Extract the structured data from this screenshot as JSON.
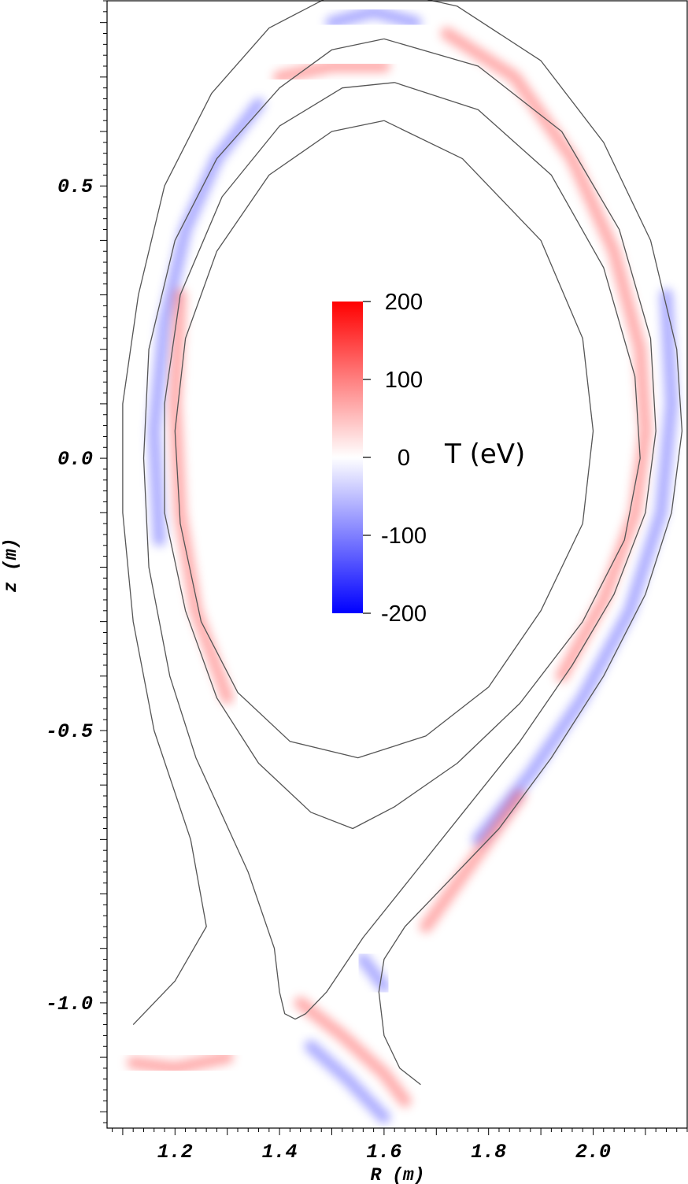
{
  "chart_data": {
    "type": "heatmap",
    "title": "",
    "xlabel": "R (m)",
    "ylabel": "z (m)",
    "xlim": [
      1.07,
      2.18
    ],
    "ylim": [
      -1.23,
      0.84
    ],
    "x_ticks": [
      {
        "value": 1.2,
        "label": "1.2"
      },
      {
        "value": 1.4,
        "label": "1.4"
      },
      {
        "value": 1.6,
        "label": "1.6"
      },
      {
        "value": 1.8,
        "label": "1.8"
      },
      {
        "value": 2.0,
        "label": "2.0"
      }
    ],
    "y_ticks": [
      {
        "value": 0.5,
        "label": "0.5"
      },
      {
        "value": 0.0,
        "label": "0.0"
      },
      {
        "value": -0.5,
        "label": "-0.5"
      },
      {
        "value": -1.0,
        "label": "-1.0"
      }
    ],
    "colorbar": {
      "title": "T (eV)",
      "range": [
        -200,
        200
      ],
      "ticks": [
        {
          "value": 200,
          "label": "200"
        },
        {
          "value": 100,
          "label": "100"
        },
        {
          "value": 0,
          "label": "0"
        },
        {
          "value": -100,
          "label": "-100"
        },
        {
          "value": -200,
          "label": "-200"
        }
      ],
      "colors": {
        "min": "#0000ff",
        "mid": "#ffffff",
        "max": "#ff0000"
      }
    },
    "flux_surfaces": [
      {
        "points": [
          [
            1.6,
            0.62
          ],
          [
            1.75,
            0.55
          ],
          [
            1.9,
            0.4
          ],
          [
            1.98,
            0.22
          ],
          [
            2.0,
            0.05
          ],
          [
            1.98,
            -0.12
          ],
          [
            1.9,
            -0.28
          ],
          [
            1.8,
            -0.42
          ],
          [
            1.68,
            -0.51
          ],
          [
            1.55,
            -0.55
          ],
          [
            1.42,
            -0.52
          ],
          [
            1.32,
            -0.43
          ],
          [
            1.25,
            -0.3
          ],
          [
            1.21,
            -0.12
          ],
          [
            1.2,
            0.05
          ],
          [
            1.22,
            0.22
          ],
          [
            1.28,
            0.38
          ],
          [
            1.38,
            0.52
          ],
          [
            1.5,
            0.6
          ],
          [
            1.6,
            0.62
          ]
        ]
      },
      {
        "points": [
          [
            1.62,
            0.69
          ],
          [
            1.78,
            0.64
          ],
          [
            1.92,
            0.52
          ],
          [
            2.02,
            0.35
          ],
          [
            2.08,
            0.15
          ],
          [
            2.09,
            0.0
          ],
          [
            2.06,
            -0.15
          ],
          [
            1.98,
            -0.3
          ],
          [
            1.86,
            -0.45
          ],
          [
            1.74,
            -0.56
          ],
          [
            1.62,
            -0.64
          ],
          [
            1.54,
            -0.68
          ],
          [
            1.46,
            -0.65
          ],
          [
            1.36,
            -0.56
          ],
          [
            1.28,
            -0.44
          ],
          [
            1.22,
            -0.28
          ],
          [
            1.18,
            -0.1
          ],
          [
            1.18,
            0.1
          ],
          [
            1.21,
            0.3
          ],
          [
            1.29,
            0.48
          ],
          [
            1.4,
            0.61
          ],
          [
            1.52,
            0.68
          ],
          [
            1.62,
            0.69
          ]
        ]
      },
      {
        "points": [
          [
            1.6,
            0.77
          ],
          [
            1.78,
            0.72
          ],
          [
            1.94,
            0.6
          ],
          [
            2.05,
            0.42
          ],
          [
            2.11,
            0.22
          ],
          [
            2.12,
            0.05
          ],
          [
            2.1,
            -0.1
          ],
          [
            2.04,
            -0.25
          ],
          [
            1.96,
            -0.38
          ],
          [
            1.86,
            -0.52
          ],
          [
            1.76,
            -0.64
          ],
          [
            1.66,
            -0.76
          ],
          [
            1.56,
            -0.88
          ],
          [
            1.49,
            -0.98
          ],
          [
            1.45,
            -1.02
          ],
          [
            1.43,
            -1.03
          ],
          [
            1.41,
            -1.02
          ],
          [
            1.4,
            -0.98
          ],
          [
            1.39,
            -0.9
          ],
          [
            1.34,
            -0.76
          ],
          [
            1.24,
            -0.55
          ],
          [
            1.19,
            -0.4
          ],
          [
            1.15,
            -0.2
          ],
          [
            1.14,
            0.0
          ],
          [
            1.15,
            0.2
          ],
          [
            1.2,
            0.4
          ],
          [
            1.28,
            0.55
          ],
          [
            1.4,
            0.68
          ],
          [
            1.5,
            0.75
          ],
          [
            1.6,
            0.77
          ]
        ]
      },
      {
        "points": [
          [
            1.12,
            -1.04
          ],
          [
            1.2,
            -0.96
          ],
          [
            1.26,
            -0.86
          ],
          [
            1.23,
            -0.7
          ],
          [
            1.16,
            -0.5
          ],
          [
            1.12,
            -0.3
          ],
          [
            1.1,
            -0.1
          ],
          [
            1.1,
            0.1
          ],
          [
            1.13,
            0.3
          ],
          [
            1.18,
            0.5
          ],
          [
            1.27,
            0.67
          ],
          [
            1.38,
            0.79
          ],
          [
            1.5,
            0.85
          ],
          [
            1.6,
            0.86
          ],
          [
            1.74,
            0.83
          ],
          [
            1.9,
            0.73
          ],
          [
            2.02,
            0.58
          ],
          [
            2.11,
            0.4
          ],
          [
            2.16,
            0.2
          ],
          [
            2.17,
            0.05
          ],
          [
            2.15,
            -0.1
          ],
          [
            2.1,
            -0.25
          ],
          [
            2.02,
            -0.4
          ],
          [
            1.92,
            -0.55
          ],
          [
            1.82,
            -0.68
          ],
          [
            1.72,
            -0.78
          ],
          [
            1.64,
            -0.86
          ],
          [
            1.6,
            -0.92
          ],
          [
            1.59,
            -0.98
          ],
          [
            1.6,
            -1.06
          ],
          [
            1.63,
            -1.12
          ],
          [
            1.67,
            -1.15
          ]
        ]
      }
    ],
    "perturbation_bands": [
      {
        "sign": "positive",
        "points": [
          [
            1.72,
            0.78
          ],
          [
            1.85,
            0.7
          ],
          [
            1.96,
            0.55
          ],
          [
            2.04,
            0.38
          ],
          [
            2.09,
            0.2
          ],
          [
            2.1,
            0.05
          ],
          [
            2.08,
            -0.1
          ],
          [
            2.02,
            -0.26
          ],
          [
            1.94,
            -0.4
          ]
        ]
      },
      {
        "sign": "negative",
        "points": [
          [
            2.14,
            0.3
          ],
          [
            2.15,
            0.1
          ],
          [
            2.13,
            -0.1
          ],
          [
            2.07,
            -0.28
          ],
          [
            1.98,
            -0.44
          ],
          [
            1.88,
            -0.58
          ],
          [
            1.78,
            -0.7
          ]
        ]
      },
      {
        "sign": "positive",
        "points": [
          [
            1.86,
            -0.62
          ],
          [
            1.8,
            -0.7
          ],
          [
            1.74,
            -0.78
          ],
          [
            1.68,
            -0.86
          ]
        ]
      },
      {
        "sign": "negative",
        "points": [
          [
            1.36,
            0.65
          ],
          [
            1.28,
            0.55
          ],
          [
            1.22,
            0.42
          ],
          [
            1.18,
            0.25
          ],
          [
            1.16,
            0.05
          ],
          [
            1.17,
            -0.15
          ]
        ]
      },
      {
        "sign": "positive",
        "points": [
          [
            1.21,
            0.3
          ],
          [
            1.2,
            0.1
          ],
          [
            1.21,
            -0.1
          ],
          [
            1.24,
            -0.28
          ],
          [
            1.3,
            -0.44
          ]
        ]
      },
      {
        "sign": "negative",
        "points": [
          [
            1.5,
            0.8
          ],
          [
            1.58,
            0.82
          ],
          [
            1.66,
            0.8
          ]
        ]
      },
      {
        "sign": "positive",
        "points": [
          [
            1.4,
            0.7
          ],
          [
            1.5,
            0.72
          ],
          [
            1.6,
            0.72
          ]
        ]
      },
      {
        "sign": "positive",
        "points": [
          [
            1.44,
            -1.0
          ],
          [
            1.52,
            -1.06
          ],
          [
            1.6,
            -1.13
          ],
          [
            1.64,
            -1.18
          ]
        ]
      },
      {
        "sign": "negative",
        "points": [
          [
            1.46,
            -1.08
          ],
          [
            1.53,
            -1.14
          ],
          [
            1.6,
            -1.21
          ]
        ]
      },
      {
        "sign": "negative",
        "points": [
          [
            1.56,
            -0.92
          ],
          [
            1.6,
            -0.97
          ]
        ]
      },
      {
        "sign": "positive",
        "points": [
          [
            1.12,
            -1.11
          ],
          [
            1.2,
            -1.12
          ],
          [
            1.3,
            -1.1
          ]
        ]
      }
    ]
  }
}
